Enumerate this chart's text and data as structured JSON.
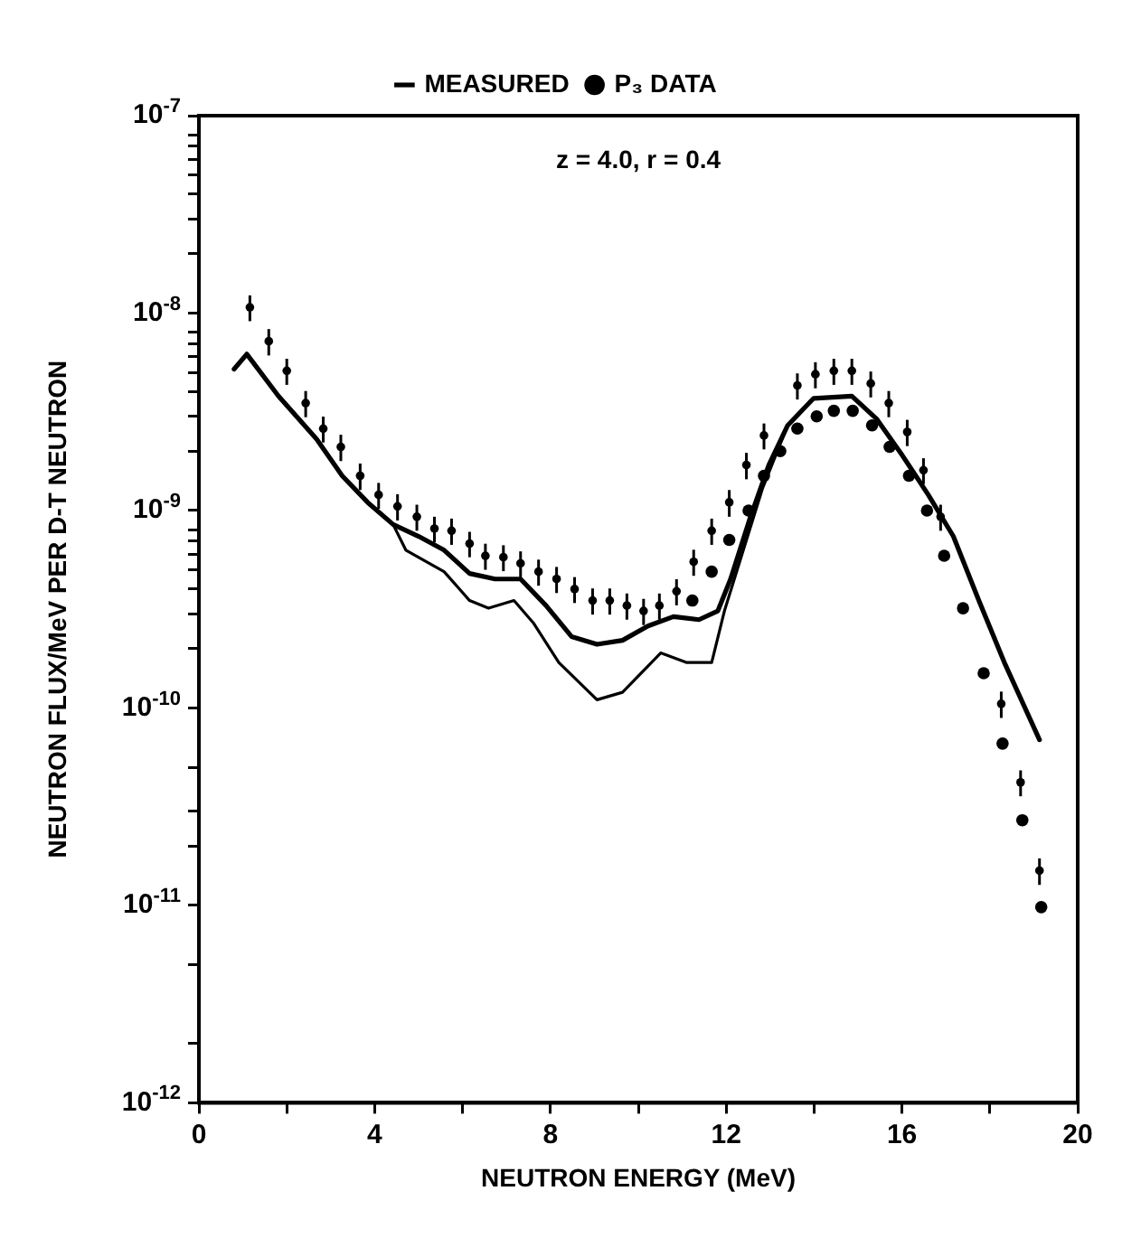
{
  "chart_data": {
    "type": "scatter",
    "xlabel": "NEUTRON ENERGY (MeV)",
    "ylabel": "NEUTRON FLUX/MeV PER D-T NEUTRON",
    "annotations": [
      "z = 4.0, r = 0.4"
    ],
    "log": "y",
    "grid": false,
    "legend": "top",
    "xlim": [
      0,
      20
    ],
    "xticks": [
      0,
      {
        "value": 2,
        "label": null
      },
      4,
      {
        "value": 6,
        "label": null
      },
      8,
      {
        "value": 10,
        "label": null
      },
      12,
      {
        "value": 14,
        "label": null
      },
      16,
      {
        "value": 18,
        "label": null
      },
      20
    ],
    "ylim": [
      1e-12,
      1e-07
    ],
    "yticks": [
      {
        "value": 1e-12,
        "label": "10$^{-12}$"
      },
      {
        "value": 2e-12,
        "label": null
      },
      {
        "value": 5e-12,
        "label": null
      },
      {
        "value": 1e-11,
        "label": "10$^{-11}$"
      },
      {
        "value": 2e-11,
        "label": null
      },
      {
        "value": 3e-11,
        "label": null
      },
      {
        "value": 5e-11,
        "label": null
      },
      {
        "value": 1e-10,
        "label": "10$^{-10}$"
      },
      {
        "value": 2e-10,
        "label": null
      },
      {
        "value": 3e-10,
        "label": null
      },
      {
        "value": 4e-10,
        "label": null
      },
      {
        "value": 5e-10,
        "label": null
      },
      {
        "value": 6e-10,
        "label": null
      },
      {
        "value": 7e-10,
        "label": null
      },
      {
        "value": 8e-10,
        "label": null
      },
      {
        "value": 1e-09,
        "label": "10$^{-9}$"
      },
      {
        "value": 2e-09,
        "label": null
      },
      {
        "value": 3e-09,
        "label": null
      },
      {
        "value": 4e-09,
        "label": null
      },
      {
        "value": 5e-09,
        "label": null
      },
      {
        "value": 6e-09,
        "label": null
      },
      {
        "value": 7e-09,
        "label": null
      },
      {
        "value": 8e-09,
        "label": null
      },
      {
        "value": 1e-08,
        "label": "10$^{-8}$"
      },
      {
        "value": 2e-08,
        "label": null
      },
      {
        "value": 3e-08,
        "label": null
      },
      {
        "value": 4e-08,
        "label": null
      },
      {
        "value": 5e-08,
        "label": null
      },
      {
        "value": 6e-08,
        "label": null
      },
      {
        "value": 7e-08,
        "label": null
      },
      {
        "value": 8e-08,
        "label": null
      },
      {
        "value": 1e-07,
        "label": "10$^{-7}$"
      }
    ],
    "series": [
      {
        "name": "MEASURED",
        "type": "line",
        "marker": "none",
        "color": "#000000",
        "x": [
          0.8,
          1.09,
          1.81,
          2.68,
          3.26,
          3.84,
          4.42,
          5.0,
          5.58,
          6.16,
          6.74,
          7.32,
          7.9,
          8.48,
          9.06,
          9.64,
          10.22,
          10.8,
          11.38,
          11.81,
          12.1,
          12.54,
          12.97,
          13.4,
          13.99,
          14.86,
          15.43,
          16.01,
          16.6,
          17.17,
          17.75,
          18.33,
          19.13
        ],
        "values": [
          5.2e-09,
          6.2e-09,
          3.8e-09,
          2.3e-09,
          1.5e-09,
          1.1e-09,
          8.5e-10,
          7.4e-10,
          6.3e-10,
          4.8e-10,
          4.5e-10,
          4.5e-10,
          3.3e-10,
          2.3e-10,
          2.1e-10,
          2.2e-10,
          2.6e-10,
          2.9e-10,
          2.8e-10,
          3.1e-10,
          4.5e-10,
          9.1e-10,
          1.7e-09,
          2.7e-09,
          3.7e-09,
          3.8e-09,
          2.9e-09,
          1.9e-09,
          1.2e-09,
          7.4e-10,
          3.5e-10,
          1.7e-10,
          6.9e-11
        ]
      },
      {
        "type": "line",
        "marker": "none",
        "color": "#000000",
        "x": [
          0.8,
          1.09,
          1.81,
          2.68,
          3.26,
          3.84,
          4.42,
          4.71,
          5.58,
          6.16,
          6.59,
          7.17,
          7.61,
          8.19,
          9.06,
          9.64,
          10.51,
          11.09,
          11.67,
          11.96,
          12.39,
          12.83,
          13.4,
          13.99,
          14.86,
          15.43,
          16.01,
          16.6,
          17.17,
          17.75,
          18.33,
          19.13
        ],
        "values": [
          5.2e-09,
          6.2e-09,
          3.8e-09,
          2.3e-09,
          1.5e-09,
          1.1e-09,
          8.5e-10,
          6.3e-10,
          4.9e-10,
          3.5e-10,
          3.2e-10,
          3.5e-10,
          2.7e-10,
          1.7e-10,
          1.1e-10,
          1.2e-10,
          1.9e-10,
          1.7e-10,
          1.7e-10,
          3.1e-10,
          6.3e-10,
          1.3e-09,
          2.7e-09,
          3.7e-09,
          3.8e-09,
          2.9e-09,
          1.9e-09,
          1.2e-09,
          7.4e-10,
          3.5e-10,
          1.7e-10,
          6.9e-11
        ]
      },
      {
        "name": "P₃ DATA",
        "type": "scatter",
        "marker": "circle",
        "color": "#000000",
        "x": [
          11.23,
          11.67,
          12.07,
          12.51,
          12.86,
          13.23,
          13.62,
          14.06,
          14.45,
          14.88,
          15.32,
          15.72,
          16.16,
          16.57,
          16.96,
          17.39,
          17.86,
          18.29,
          18.74,
          19.17
        ],
        "values": [
          3.5e-10,
          4.9e-10,
          7.1e-10,
          1e-09,
          1.5e-09,
          2e-09,
          2.6e-09,
          3e-09,
          3.2e-09,
          3.2e-09,
          2.7e-09,
          2.1e-09,
          1.5e-09,
          1e-09,
          5.9e-10,
          3.2e-10,
          1.5e-10,
          6.6e-11,
          2.7e-11,
          9.8e-12
        ]
      },
      {
        "type": "scatter",
        "marker": "circle",
        "color": "#000000",
        "x": [
          1.16,
          1.59,
          2.0,
          2.43,
          2.83,
          3.23,
          3.67,
          4.09,
          4.52,
          4.96,
          5.36,
          5.75,
          6.16,
          6.52,
          6.93,
          7.32,
          7.73,
          8.14,
          8.55,
          8.96,
          9.35,
          9.74,
          10.12,
          10.48,
          10.87,
          11.26,
          11.67,
          12.07,
          12.46,
          12.86,
          13.62,
          14.03,
          14.45,
          14.86,
          15.29,
          15.7,
          16.12,
          16.49,
          16.88,
          18.26,
          18.7,
          19.13
        ],
        "values": [
          1.07e-08,
          7.2e-09,
          5.1e-09,
          3.5e-09,
          2.6e-09,
          2.1e-09,
          1.5e-09,
          1.2e-09,
          1.05e-09,
          9.3e-10,
          8.1e-10,
          7.9e-10,
          6.8e-10,
          5.9e-10,
          5.8e-10,
          5.4e-10,
          4.9e-10,
          4.5e-10,
          4e-10,
          3.5e-10,
          3.5e-10,
          3.3e-10,
          3.1e-10,
          3.3e-10,
          3.9e-10,
          5.5e-10,
          7.9e-10,
          1.1e-09,
          1.7e-09,
          2.4e-09,
          4.3e-09,
          4.9e-09,
          5.1e-09,
          5.1e-09,
          4.4e-09,
          3.5e-09,
          2.5e-09,
          1.6e-09,
          9.3e-10,
          1.05e-10,
          4.2e-11,
          1.5e-11
        ],
        "errors": [
          1.6e-09,
          1.1e-09,
          7.7e-10,
          5.3e-10,
          3.9e-10,
          3.2e-10,
          2.3e-10,
          1.8e-10,
          1.6e-10,
          1.4e-10,
          1.2e-10,
          1.2e-10,
          1e-10,
          8.9e-11,
          8.7e-11,
          8.1e-11,
          7.4e-11,
          6.8e-11,
          6e-11,
          5.3e-11,
          5.3e-11,
          5e-11,
          4.7e-11,
          5e-11,
          5.9e-11,
          8.3e-11,
          1.2e-10,
          1.7e-10,
          2.6e-10,
          3.6e-10,
          6.5e-10,
          7.4e-10,
          7.7e-10,
          7.7e-10,
          6.6e-10,
          5.3e-10,
          3.8e-10,
          2.4e-10,
          1.4e-10,
          1.6e-11,
          6.3e-12,
          2.3e-12
        ]
      }
    ]
  }
}
